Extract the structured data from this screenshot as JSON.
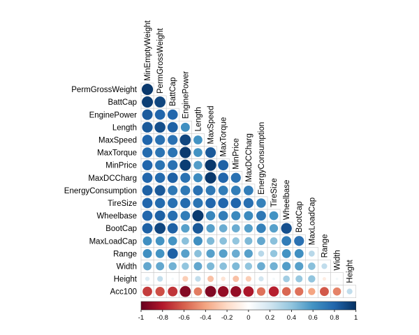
{
  "chart_data": {
    "type": "heatmap",
    "variant": "lower-triangular correlation matrix, circle glyphs",
    "title": "",
    "row_labels": [
      "PermGrossWeight",
      "BattCap",
      "EnginePower",
      "Length",
      "MaxSpeed",
      "MaxTorque",
      "MinPrice",
      "MaxDCCharg",
      "EnergyConsumption",
      "TireSize",
      "Wheelbase",
      "BootCap",
      "MaxLoadCap",
      "Range",
      "Width",
      "Height",
      "Acc100"
    ],
    "column_labels": [
      "MinEmptyWeight",
      "PermGrossWeight",
      "BattCap",
      "EnginePower",
      "Length",
      "MaxSpeed",
      "MaxTorque",
      "MinPrice",
      "MaxDCCharg",
      "EnergyConsumption",
      "TireSize",
      "Wheelbase",
      "BootCap",
      "MaxLoadCap",
      "Range",
      "Width",
      "Height"
    ],
    "matrix": [
      [
        0.97
      ],
      [
        0.95,
        0.92
      ],
      [
        0.84,
        0.8,
        0.8
      ],
      [
        0.85,
        0.89,
        0.82,
        0.62
      ],
      [
        0.8,
        0.75,
        0.75,
        0.92,
        0.6
      ],
      [
        0.78,
        0.74,
        0.74,
        0.96,
        0.6,
        0.85
      ],
      [
        0.8,
        0.74,
        0.75,
        0.95,
        0.56,
        0.97,
        0.82
      ],
      [
        0.8,
        0.78,
        0.82,
        0.75,
        0.63,
        0.97,
        0.8,
        0.75
      ],
      [
        0.82,
        0.85,
        0.72,
        0.72,
        0.75,
        0.72,
        0.7,
        0.7,
        0.7
      ],
      [
        0.8,
        0.78,
        0.76,
        0.78,
        0.74,
        0.8,
        0.8,
        0.8,
        0.76,
        0.68
      ],
      [
        0.8,
        0.82,
        0.76,
        0.7,
        0.96,
        0.66,
        0.7,
        0.64,
        0.64,
        0.72,
        0.6
      ],
      [
        0.82,
        0.92,
        0.82,
        0.55,
        0.85,
        0.55,
        0.5,
        0.5,
        0.55,
        0.68,
        0.55,
        0.88
      ],
      [
        0.62,
        0.6,
        0.6,
        0.42,
        0.62,
        0.45,
        0.42,
        0.4,
        0.45,
        0.52,
        0.42,
        0.7,
        0.75
      ],
      [
        0.62,
        0.6,
        0.82,
        0.55,
        0.42,
        0.55,
        0.55,
        0.5,
        0.55,
        0.28,
        0.4,
        0.6,
        0.62,
        0.28
      ],
      [
        0.52,
        0.52,
        0.48,
        0.4,
        0.52,
        0.45,
        0.42,
        0.45,
        0.4,
        0.5,
        0.48,
        0.56,
        0.55,
        0.42,
        0.25
      ],
      [
        0.15,
        0.25,
        0.05,
        -0.25,
        0.25,
        -0.3,
        -0.15,
        -0.3,
        -0.25,
        0.2,
        0.05,
        0.35,
        0.38,
        0.4,
        -0.1,
        0.05
      ],
      [
        -0.7,
        -0.65,
        -0.72,
        -0.92,
        -0.52,
        -0.93,
        -0.88,
        -0.88,
        -0.82,
        -0.55,
        -0.78,
        -0.58,
        -0.55,
        -0.4,
        -0.62,
        -0.5,
        0.25
      ]
    ],
    "colorbar": {
      "range": [
        -1,
        1
      ],
      "ticks": [
        "-1",
        "-0.8",
        "-0.6",
        "-0.4",
        "-0.2",
        "0",
        "0.2",
        "0.4",
        "0.6",
        "0.8",
        "1"
      ],
      "low_color": "#67001F",
      "mid_color": "#FFFFFF",
      "high_color": "#053061"
    }
  }
}
